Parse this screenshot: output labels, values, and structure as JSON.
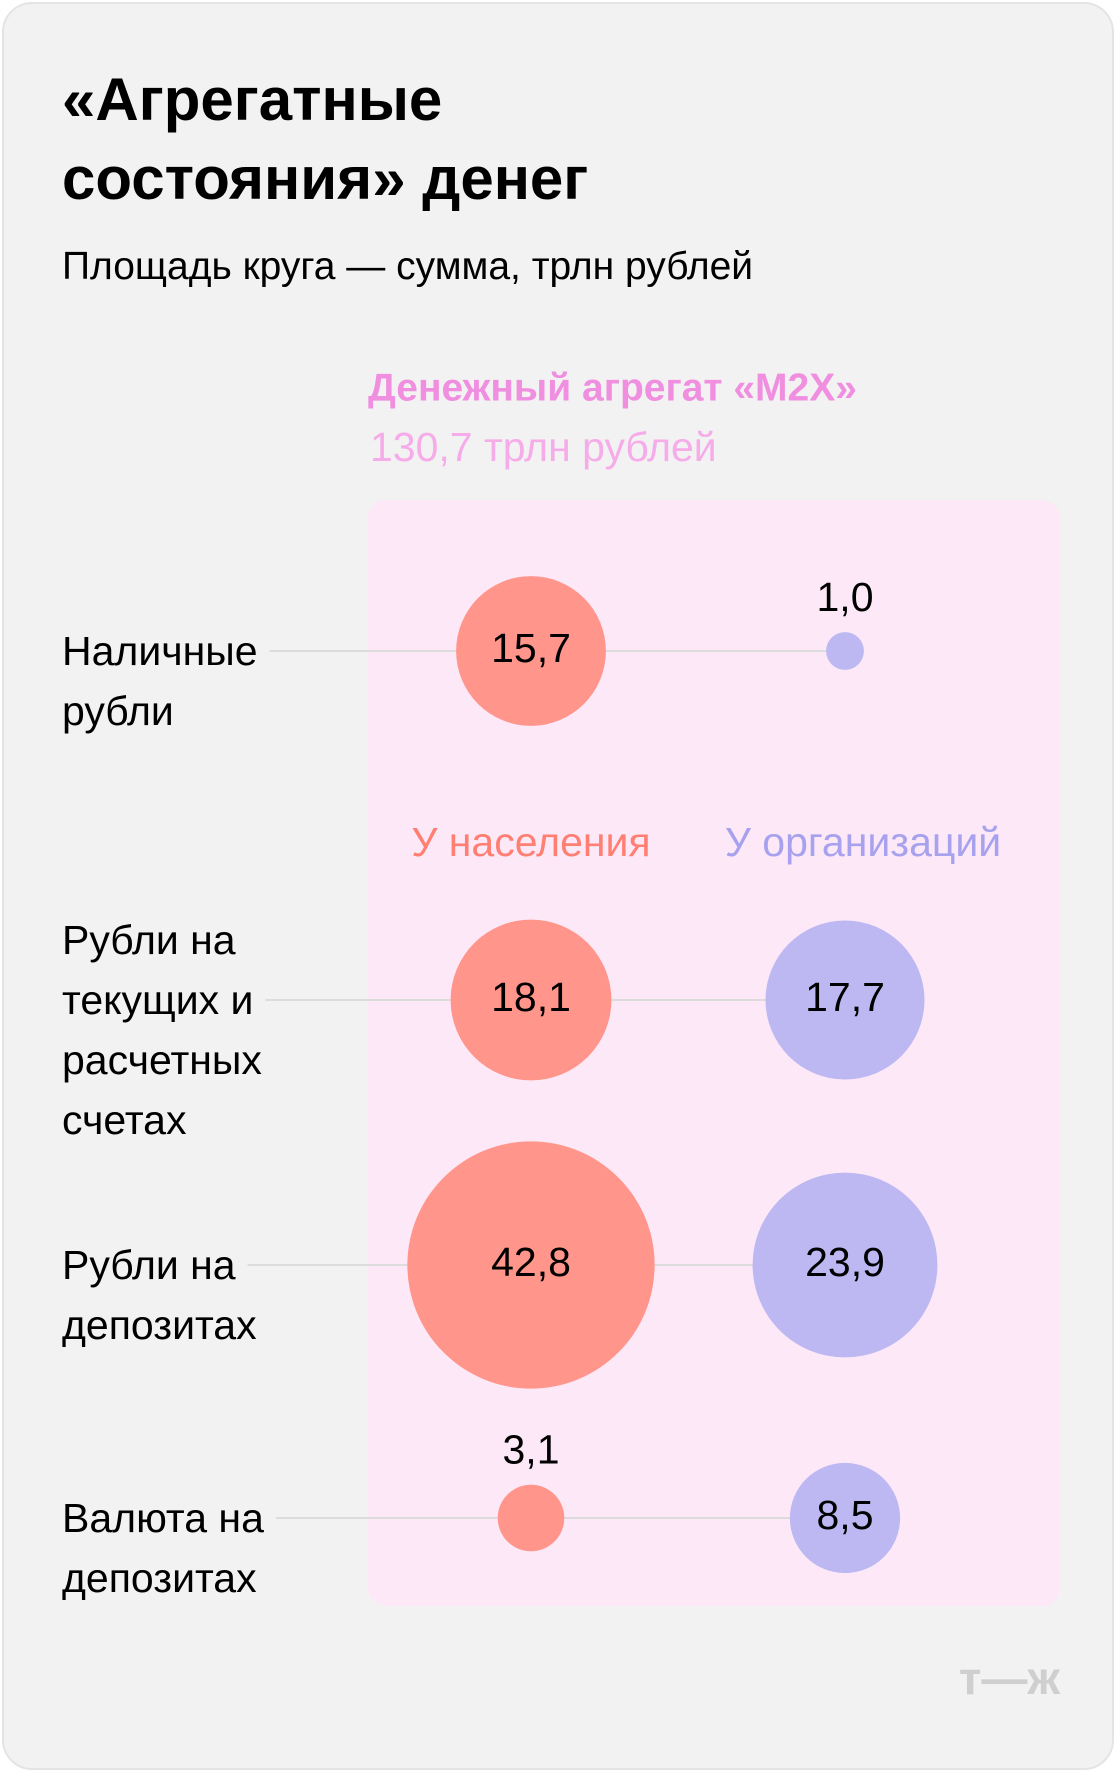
{
  "chart_data": {
    "type": "bubble",
    "title": "«Агрегатные состояния» денег",
    "subtitle": "Площадь круга — сумма, трлн рублей",
    "aggregate_title": "Денежный агрегат «M2X»",
    "aggregate_subtitle": "130,7 трлн рублей",
    "categories": [
      "Наличные рубли",
      "Рубли на текущих и расчетных счетах",
      "Рубли на депозитах",
      "Валюта на депозитах"
    ],
    "series": [
      {
        "name": "У населения",
        "color": "#ff958b",
        "values": [
          15.7,
          18.1,
          42.8,
          3.1
        ],
        "value_labels": [
          "15,7",
          "18,1",
          "42,8",
          "3,1"
        ]
      },
      {
        "name": "У организаций",
        "color": "#bdb8f2",
        "values": [
          1.0,
          17.7,
          23.9,
          8.5
        ],
        "value_labels": [
          "1,0",
          "17,7",
          "23,9",
          "8,5"
        ]
      }
    ],
    "logo": "т—ж"
  }
}
